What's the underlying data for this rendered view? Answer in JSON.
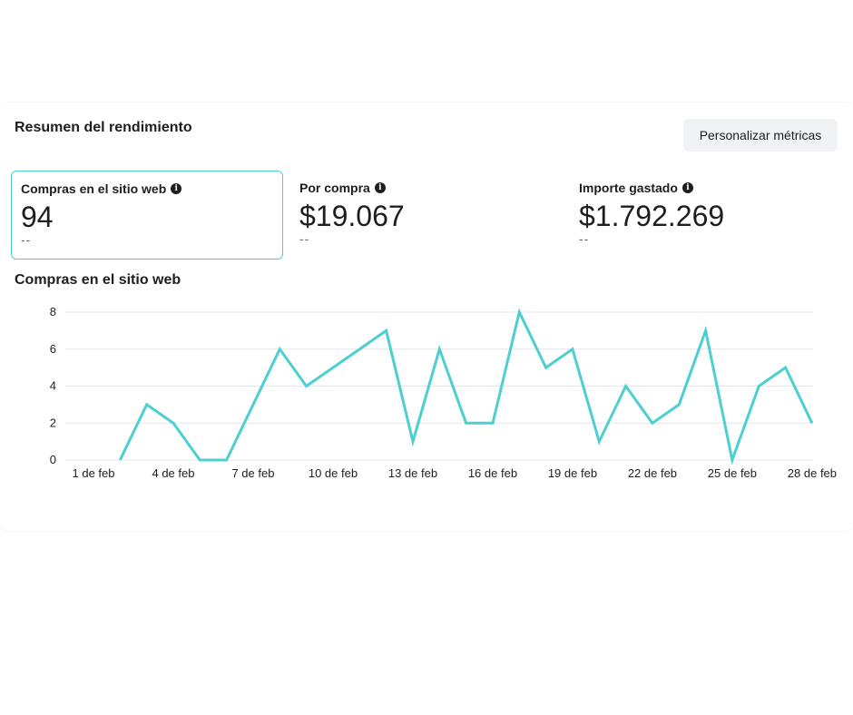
{
  "header": {
    "title": "Resumen del rendimiento",
    "customize_label": "Personalizar métricas"
  },
  "metrics": [
    {
      "label": "Compras en el sitio web",
      "value": "94",
      "delta": "--",
      "icon": "info-icon",
      "selected": true
    },
    {
      "label": "Por compra",
      "value": "$19.067",
      "delta": "--",
      "icon": "info-icon",
      "selected": false
    },
    {
      "label": "Importe gastado",
      "value": "$1.792.269",
      "delta": "--",
      "icon": "info-icon",
      "selected": false
    }
  ],
  "chart_title": "Compras en el sitio web",
  "chart_data": {
    "type": "line",
    "x": [
      "1 de feb",
      "2 de feb",
      "3 de feb",
      "4 de feb",
      "5 de feb",
      "6 de feb",
      "7 de feb",
      "8 de feb",
      "9 de feb",
      "10 de feb",
      "11 de feb",
      "12 de feb",
      "13 de feb",
      "14 de feb",
      "15 de feb",
      "16 de feb",
      "17 de feb",
      "18 de feb",
      "19 de feb",
      "20 de feb",
      "21 de feb",
      "22 de feb",
      "23 de feb",
      "24 de feb",
      "25 de feb",
      "26 de feb",
      "27 de feb",
      "28 de feb"
    ],
    "x_tick_labels": [
      "1 de feb",
      "4 de feb",
      "7 de feb",
      "10 de feb",
      "13 de feb",
      "16 de feb",
      "19 de feb",
      "22 de feb",
      "25 de feb",
      "28 de feb"
    ],
    "series": [
      {
        "values": [
          null,
          0,
          3,
          2,
          0,
          0,
          3,
          6,
          4,
          5,
          6,
          7,
          1,
          6,
          2,
          2,
          8,
          5,
          6,
          1,
          4,
          2,
          3,
          7,
          0,
          4,
          5,
          2
        ]
      }
    ],
    "ylim": [
      0,
      8
    ],
    "y_ticks": [
      0,
      2,
      4,
      6,
      8
    ],
    "grid": true,
    "color": "#4ccfd0"
  }
}
